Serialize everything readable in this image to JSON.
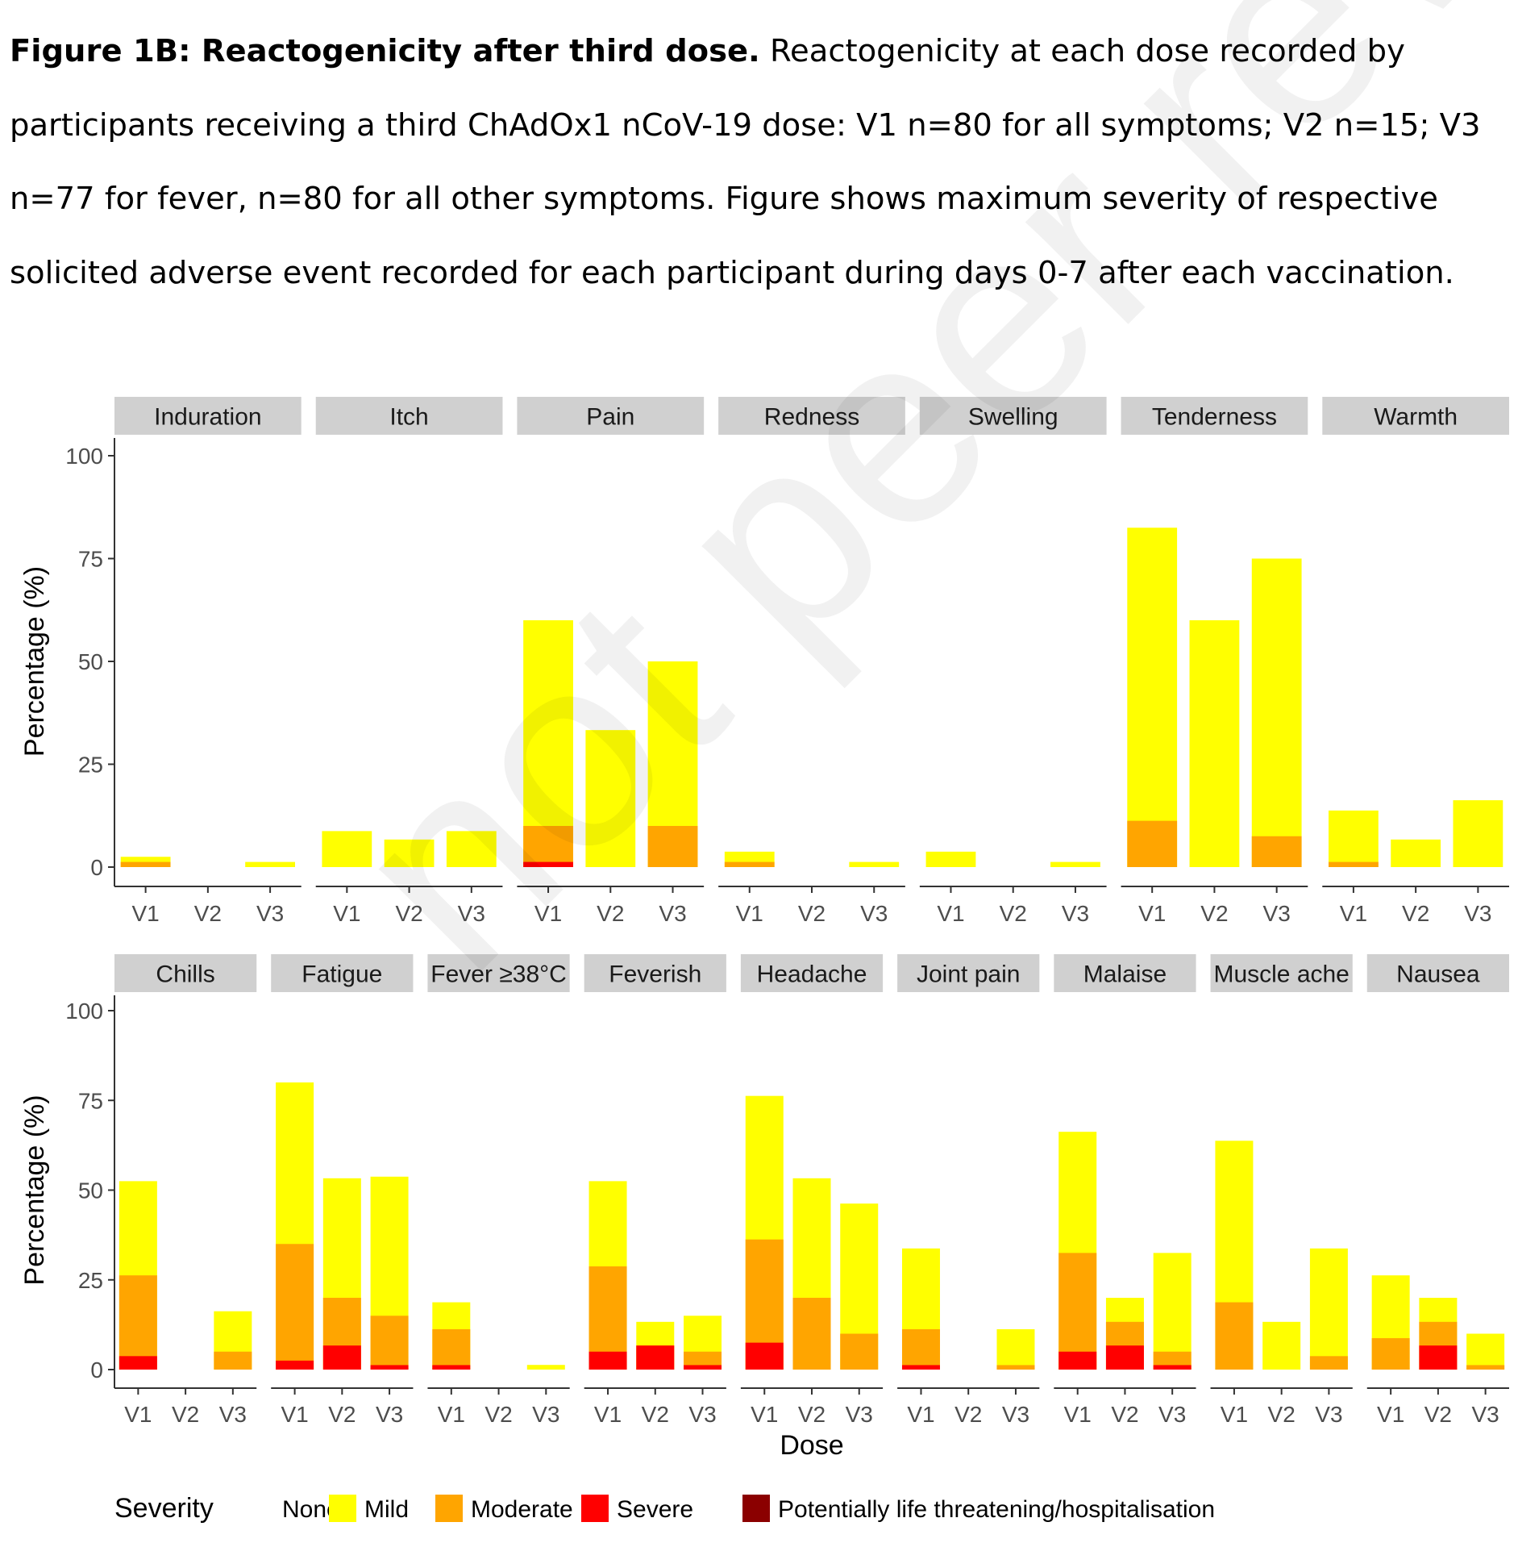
{
  "caption": {
    "bold": "Figure 1B: Reactogenicity after third dose.",
    "text": " Reactogenicity at each dose recorded by participants receiving a third ChAdOx1 nCoV-19 dose: V1 n=80 for all symptoms; V2 n=15; V3 n=77 for fever, n=80 for all other symptoms. Figure shows maximum severity of respective solicited adverse event recorded for each participant during days 0-7 after each vaccination."
  },
  "watermark": "not peer reviewed",
  "chart_data": {
    "type": "bar",
    "stacked": true,
    "ylabel": "Percentage (%)",
    "xlabel": "Dose",
    "ylim": [
      0,
      100
    ],
    "yticks": [
      0,
      25,
      50,
      75,
      100
    ],
    "doses": [
      "V1",
      "V2",
      "V3"
    ],
    "legend": {
      "title": "Severity",
      "position": "bottom",
      "items": [
        {
          "name": "None",
          "color": "#ffffff"
        },
        {
          "name": "Mild",
          "color": "#ffff00"
        },
        {
          "name": "Moderate",
          "color": "#ffa500"
        },
        {
          "name": "Severe",
          "color": "#ff0000"
        },
        {
          "name": "Potentially life threatening/hospitalisation",
          "color": "#8b0000"
        }
      ]
    },
    "note": "values are cumulative tops per severity: mild = total, moderate = moderate+severe, severe = severe",
    "rows": [
      {
        "panels": [
          {
            "name": "Induration",
            "bars": [
              {
                "mild": 2.5,
                "moderate": 1.25,
                "severe": 0
              },
              {
                "mild": 0,
                "moderate": 0,
                "severe": 0
              },
              {
                "mild": 1.25,
                "moderate": 0,
                "severe": 0
              }
            ]
          },
          {
            "name": "Itch",
            "bars": [
              {
                "mild": 8.75,
                "moderate": 0,
                "severe": 0
              },
              {
                "mild": 6.7,
                "moderate": 0,
                "severe": 0
              },
              {
                "mild": 8.75,
                "moderate": 0,
                "severe": 0
              }
            ]
          },
          {
            "name": "Pain",
            "bars": [
              {
                "mild": 60,
                "moderate": 10,
                "severe": 1.25
              },
              {
                "mild": 33.3,
                "moderate": 0,
                "severe": 0
              },
              {
                "mild": 50,
                "moderate": 10,
                "severe": 0
              }
            ]
          },
          {
            "name": "Redness",
            "bars": [
              {
                "mild": 3.75,
                "moderate": 1.25,
                "severe": 0
              },
              {
                "mild": 0,
                "moderate": 0,
                "severe": 0
              },
              {
                "mild": 1.25,
                "moderate": 0,
                "severe": 0
              }
            ]
          },
          {
            "name": "Swelling",
            "bars": [
              {
                "mild": 3.75,
                "moderate": 0,
                "severe": 0
              },
              {
                "mild": 0,
                "moderate": 0,
                "severe": 0
              },
              {
                "mild": 1.25,
                "moderate": 0,
                "severe": 0
              }
            ]
          },
          {
            "name": "Tenderness",
            "bars": [
              {
                "mild": 82.5,
                "moderate": 11.25,
                "severe": 0
              },
              {
                "mild": 60,
                "moderate": 0,
                "severe": 0
              },
              {
                "mild": 75,
                "moderate": 7.5,
                "severe": 0
              }
            ]
          },
          {
            "name": "Warmth",
            "bars": [
              {
                "mild": 13.75,
                "moderate": 1.25,
                "severe": 0
              },
              {
                "mild": 6.7,
                "moderate": 0,
                "severe": 0
              },
              {
                "mild": 16.25,
                "moderate": 0,
                "severe": 0
              }
            ]
          }
        ]
      },
      {
        "panels": [
          {
            "name": "Chills",
            "bars": [
              {
                "mild": 52.5,
                "moderate": 26.25,
                "severe": 3.75
              },
              {
                "mild": 0,
                "moderate": 0,
                "severe": 0
              },
              {
                "mild": 16.25,
                "moderate": 5,
                "severe": 0
              }
            ]
          },
          {
            "name": "Fatigue",
            "bars": [
              {
                "mild": 80,
                "moderate": 35,
                "severe": 2.5
              },
              {
                "mild": 53.3,
                "moderate": 20,
                "severe": 6.7
              },
              {
                "mild": 53.75,
                "moderate": 15,
                "severe": 1.25
              }
            ]
          },
          {
            "name": "Fever ≥38°C",
            "bars": [
              {
                "mild": 18.75,
                "moderate": 11.25,
                "severe": 1.25
              },
              {
                "mild": 0,
                "moderate": 0,
                "severe": 0
              },
              {
                "mild": 1.3,
                "moderate": 0,
                "severe": 0
              }
            ]
          },
          {
            "name": "Feverish",
            "bars": [
              {
                "mild": 52.5,
                "moderate": 28.75,
                "severe": 5
              },
              {
                "mild": 13.3,
                "moderate": 6.7,
                "severe": 6.7
              },
              {
                "mild": 15,
                "moderate": 5,
                "severe": 1.25
              }
            ]
          },
          {
            "name": "Headache",
            "bars": [
              {
                "mild": 76.25,
                "moderate": 36.25,
                "severe": 7.5
              },
              {
                "mild": 53.3,
                "moderate": 20,
                "severe": 0
              },
              {
                "mild": 46.25,
                "moderate": 10,
                "severe": 0
              }
            ]
          },
          {
            "name": "Joint pain",
            "bars": [
              {
                "mild": 33.75,
                "moderate": 11.25,
                "severe": 1.25
              },
              {
                "mild": 0,
                "moderate": 0,
                "severe": 0
              },
              {
                "mild": 11.25,
                "moderate": 1.25,
                "severe": 0
              }
            ]
          },
          {
            "name": "Malaise",
            "bars": [
              {
                "mild": 66.25,
                "moderate": 32.5,
                "severe": 5
              },
              {
                "mild": 20,
                "moderate": 13.3,
                "severe": 6.7
              },
              {
                "mild": 32.5,
                "moderate": 5,
                "severe": 1.25
              }
            ]
          },
          {
            "name": "Muscle ache",
            "bars": [
              {
                "mild": 63.75,
                "moderate": 18.75,
                "severe": 0
              },
              {
                "mild": 13.3,
                "moderate": 0,
                "severe": 0
              },
              {
                "mild": 33.75,
                "moderate": 3.75,
                "severe": 0
              }
            ]
          },
          {
            "name": "Nausea",
            "bars": [
              {
                "mild": 26.25,
                "moderate": 8.75,
                "severe": 0
              },
              {
                "mild": 20,
                "moderate": 13.3,
                "severe": 6.7
              },
              {
                "mild": 10,
                "moderate": 1.25,
                "severe": 0
              }
            ]
          }
        ]
      }
    ]
  }
}
